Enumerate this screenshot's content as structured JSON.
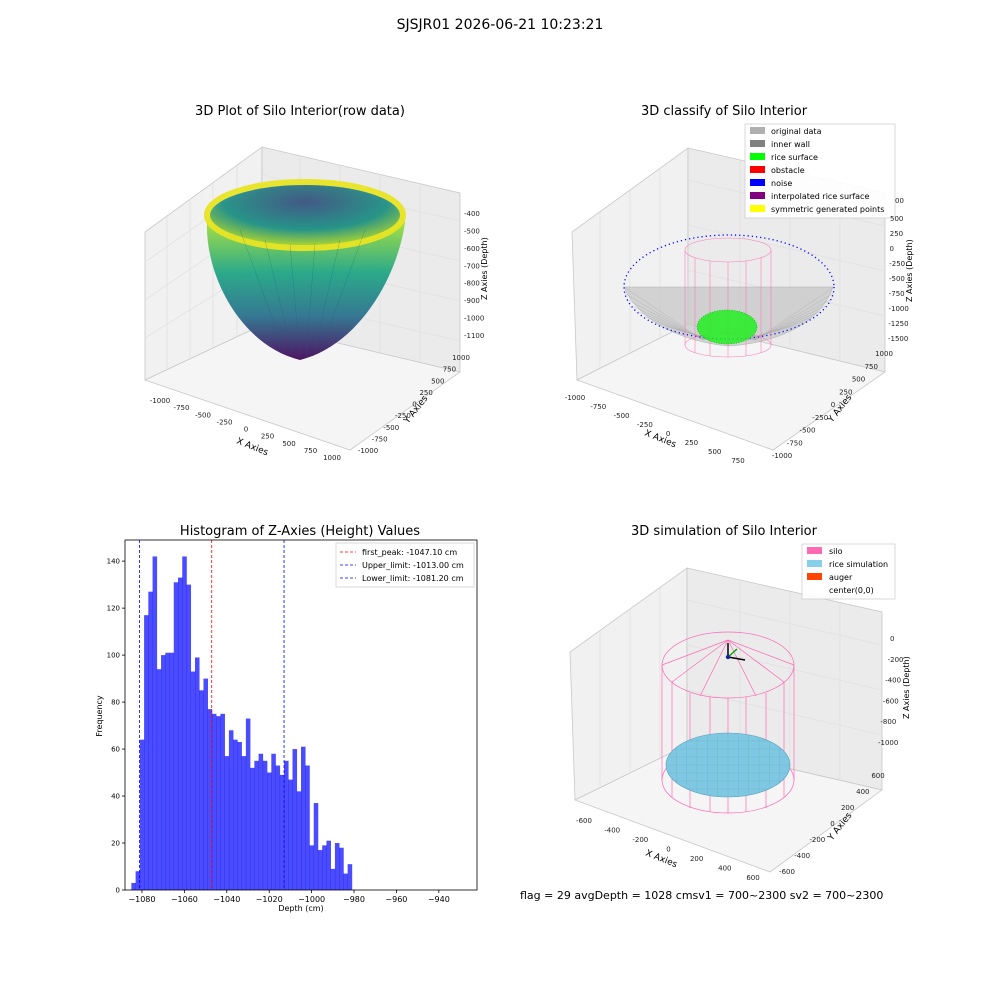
{
  "suptitle": "SJSJR01 2026-06-21 10:23:21",
  "panel1": {
    "title": "3D Plot of Silo Interior(row data)",
    "x_label": "X Axies",
    "y_label": "Y Axies",
    "z_label": "Z Axies (Depth)",
    "x_ticks": [
      "-1000",
      "-750",
      "-500",
      "-250",
      "0",
      "250",
      "500",
      "750",
      "1000"
    ],
    "y_ticks": [
      "-1000",
      "-750",
      "-500",
      "-250",
      "0",
      "250",
      "500",
      "750",
      "1000"
    ],
    "z_ticks": [
      "-400",
      "-500",
      "-600",
      "-700",
      "-800",
      "-900",
      "-1000",
      "-1100"
    ]
  },
  "panel2": {
    "title": "3D classify of Silo Interior",
    "x_label": "X Axies",
    "y_label": "Y Axies",
    "z_label": "Z Axies (Depth)",
    "x_ticks": [
      "-1000",
      "-750",
      "-500",
      "-250",
      "0",
      "250",
      "500",
      "750"
    ],
    "y_ticks": [
      "-1000",
      "-750",
      "-500",
      "-250",
      "0",
      "250",
      "500",
      "750",
      "1000"
    ],
    "z_ticks": [
      "500",
      "250",
      "0",
      "-250",
      "-500",
      "-750",
      "-1000",
      "-1250",
      "-1500"
    ],
    "legend": [
      {
        "label": "original data",
        "color": "#b0b0b0"
      },
      {
        "label": "inner wall",
        "color": "#808080"
      },
      {
        "label": "rice surface",
        "color": "#00ff00"
      },
      {
        "label": "obstacle",
        "color": "#ff0000"
      },
      {
        "label": "noise",
        "color": "#0000ff"
      },
      {
        "label": "interpolated rice surface",
        "color": "#800080"
      },
      {
        "label": "symmetric generated points",
        "color": "#ffff00"
      }
    ],
    "top_tick_partial": "00"
  },
  "panel4": {
    "title": "3D simulation of Silo Interior",
    "x_label": "X Axies",
    "y_label": "Y Axies",
    "z_label": "Z Axies (Depth)",
    "x_ticks": [
      "-600",
      "-400",
      "-200",
      "0",
      "200",
      "400",
      "600"
    ],
    "y_ticks": [
      "-600",
      "-400",
      "-200",
      "0",
      "200",
      "400",
      "600"
    ],
    "z_ticks": [
      "0",
      "-200",
      "-400",
      "-600",
      "-800",
      "-1000"
    ],
    "legend": [
      {
        "label": "silo",
        "color": "#ff69b4"
      },
      {
        "label": "rice simulation",
        "color": "#87ceeb"
      },
      {
        "label": "auger",
        "color": "#ff4500"
      },
      {
        "label": "center(0,0)",
        "color": ""
      }
    ]
  },
  "bottom_text": "flag = 29  avgDepth = 1028 cmsv1 = 700~2300  sv2 = 700~2300",
  "chart_data": [
    {
      "type": "bar",
      "title": "Histogram of Z-Axies (Height) Values",
      "xlabel": "Depth (cm)",
      "ylabel": "Frequency",
      "xlim": [
        -1088,
        -922
      ],
      "ylim": [
        0,
        149
      ],
      "xticks": [
        -1080,
        -1060,
        -1040,
        -1020,
        -1000,
        -980,
        -960,
        -940
      ],
      "yticks": [
        0,
        20,
        40,
        60,
        80,
        100,
        120,
        140
      ],
      "bar_color": "#0000ff",
      "bin_start": -1085,
      "bin_width": 2,
      "values": [
        3,
        8,
        64,
        117,
        127,
        142,
        94,
        100,
        101,
        101,
        131,
        133,
        142,
        130,
        93,
        99,
        85,
        90,
        77,
        75,
        74,
        75,
        57,
        68,
        64,
        63,
        57,
        73,
        52,
        55,
        58,
        55,
        50,
        58,
        53,
        49,
        55,
        47,
        60,
        42,
        61,
        53,
        19,
        37,
        17,
        19,
        21,
        9,
        20,
        18,
        7,
        11
      ],
      "vlines": [
        {
          "label": "first_peak: -1047.10 cm",
          "x": -1047.1,
          "color": "#ff0000"
        },
        {
          "label": "Upper_limit: -1013.00 cm",
          "x": -1013.0,
          "color": "#0000ff"
        },
        {
          "label": "Lower_limit: -1081.20 cm",
          "x": -1081.2,
          "color": "#0000ff"
        }
      ],
      "legend_loc": "upper right"
    }
  ]
}
